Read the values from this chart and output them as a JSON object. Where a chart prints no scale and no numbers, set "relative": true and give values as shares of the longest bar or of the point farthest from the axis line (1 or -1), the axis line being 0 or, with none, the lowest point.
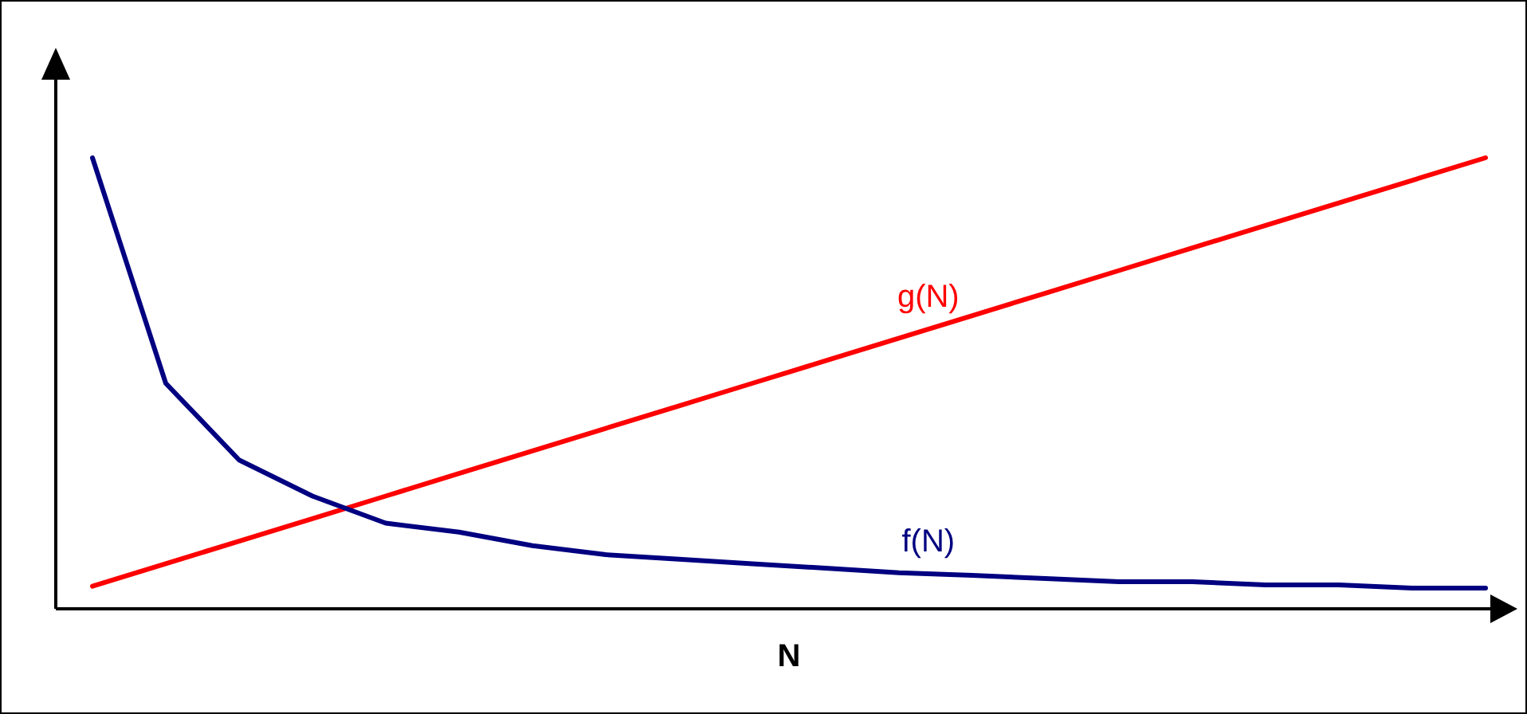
{
  "chart_data": {
    "type": "line",
    "relative": true,
    "xlabel": "N",
    "categories": [
      null,
      null,
      null,
      null,
      null,
      null,
      null,
      null,
      null,
      null,
      null,
      null,
      null,
      null,
      null,
      null,
      null,
      null,
      null,
      null
    ],
    "legend": false,
    "marker": "none",
    "line_style": "solid",
    "series": [
      {
        "name": "g(N)",
        "color": "#ff0000",
        "values": [
          0.05,
          0.1,
          0.15,
          0.2,
          0.25,
          0.3,
          0.35,
          0.4,
          0.45,
          0.5,
          0.55,
          0.6,
          0.65,
          0.7,
          0.75,
          0.8,
          0.85,
          0.9,
          0.95,
          1
        ]
      },
      {
        "name": "f(N)",
        "color": "#000080",
        "values": [
          1,
          0.5,
          0.33,
          0.25,
          0.19,
          0.17,
          0.14,
          0.12,
          0.11,
          0.1,
          0.09,
          0.08,
          0.074,
          0.067,
          0.06,
          0.06,
          0.053,
          0.053,
          0.046,
          0.046
        ]
      }
    ]
  }
}
